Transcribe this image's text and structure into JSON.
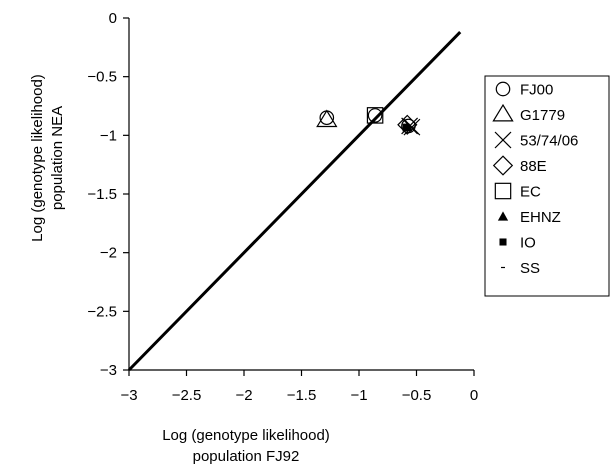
{
  "chart_data": {
    "type": "scatter",
    "title": "",
    "xlabel_lines": [
      "Log (genotype likelihood)",
      "population FJ92"
    ],
    "ylabel_lines": [
      "Log (genotype likelihood)",
      "population NEA"
    ],
    "xlim": [
      -3,
      0
    ],
    "ylim": [
      -3,
      0
    ],
    "x_ticks": [
      -3,
      -2.5,
      -2,
      -1.5,
      -1,
      -0.5,
      0
    ],
    "y_ticks": [
      0,
      -0.5,
      -1,
      -1.5,
      -2,
      -2.5,
      -3
    ],
    "x_tick_labels": [
      "−3",
      "−2.5",
      "−2",
      "−1.5",
      "−1",
      "−0.5",
      "0"
    ],
    "y_tick_labels": [
      "0",
      "−0.5",
      "−1",
      "−1.5",
      "−2",
      "−2.5",
      "−3"
    ],
    "grid": false,
    "legend_position": "right",
    "reference_line": {
      "x": [
        -3,
        -0.12
      ],
      "y": [
        -3,
        -0.12
      ]
    },
    "series": [
      {
        "name": "FJ00",
        "marker": "circle-open",
        "points": [
          {
            "x": -1.28,
            "y": -0.85
          },
          {
            "x": -0.86,
            "y": -0.83
          },
          {
            "x": -0.57,
            "y": -0.92
          }
        ]
      },
      {
        "name": "G1779",
        "marker": "triangle-open",
        "points": [
          {
            "x": -1.28,
            "y": -0.87
          }
        ]
      },
      {
        "name": "53/74/06",
        "marker": "x",
        "points": [
          {
            "x": -0.56,
            "y": -0.92
          },
          {
            "x": -0.54,
            "y": -0.93
          }
        ]
      },
      {
        "name": "88E",
        "marker": "diamond-open",
        "points": [
          {
            "x": -0.58,
            "y": -0.91
          }
        ]
      },
      {
        "name": "EC",
        "marker": "square-open",
        "points": [
          {
            "x": -0.86,
            "y": -0.83
          }
        ]
      },
      {
        "name": "EHNZ",
        "marker": "triangle-filled",
        "points": [
          {
            "x": -0.58,
            "y": -0.93
          }
        ]
      },
      {
        "name": "IO",
        "marker": "square-filled",
        "points": [
          {
            "x": -0.59,
            "y": -0.93
          }
        ]
      },
      {
        "name": "SS",
        "marker": "dash",
        "points": [
          {
            "x": -0.57,
            "y": -0.93
          }
        ]
      }
    ]
  }
}
